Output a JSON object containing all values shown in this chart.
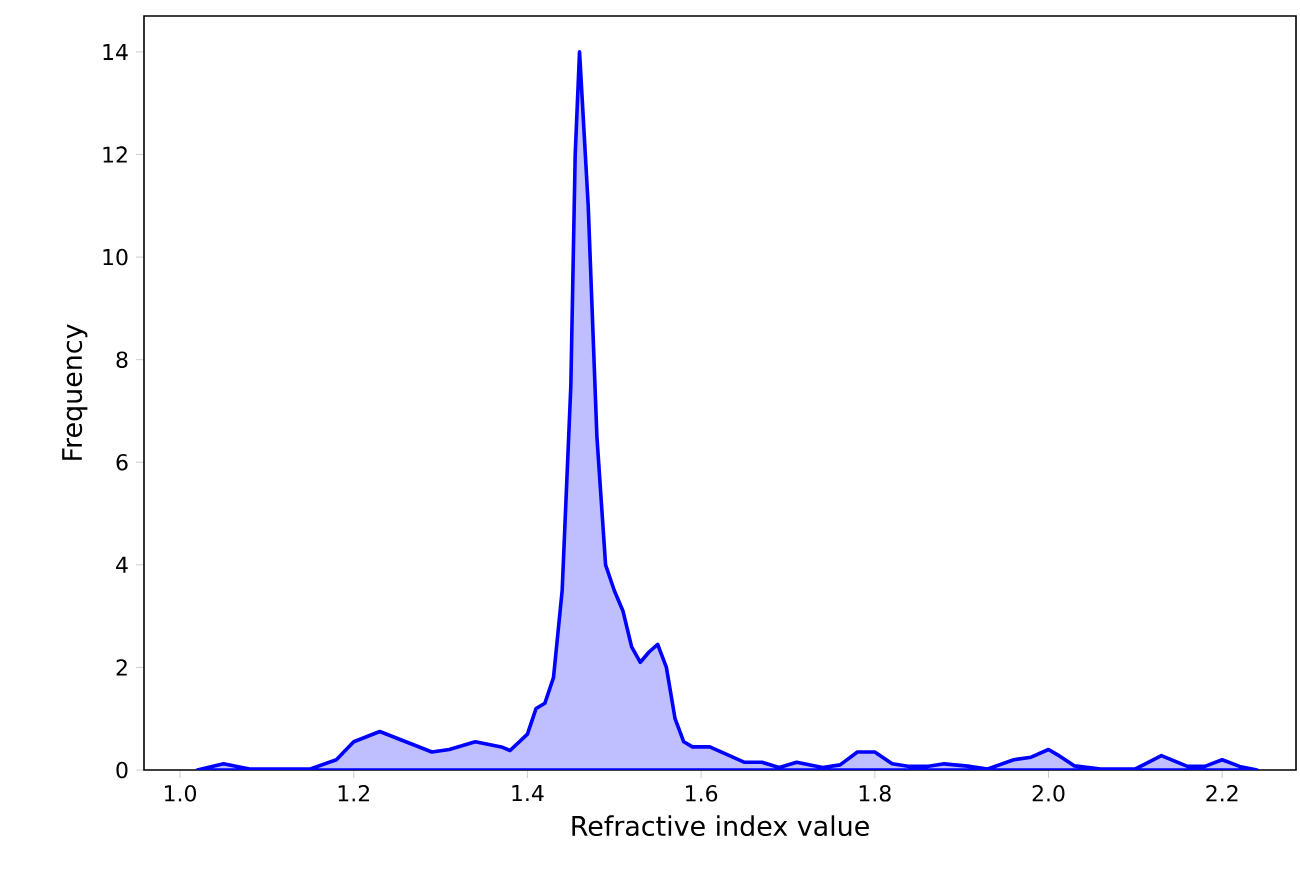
{
  "chart_data": {
    "type": "area",
    "xlabel": "Refractive index value",
    "ylabel": "Frequency",
    "xlim": [
      0.9585,
      2.285
    ],
    "ylim": [
      0,
      14.7
    ],
    "xticks": [
      {
        "value": 1.0,
        "label": "1.0"
      },
      {
        "value": 1.2,
        "label": "1.2"
      },
      {
        "value": 1.4,
        "label": "1.4"
      },
      {
        "value": 1.6,
        "label": "1.6"
      },
      {
        "value": 1.8,
        "label": "1.8"
      },
      {
        "value": 2.0,
        "label": "2.0"
      },
      {
        "value": 2.2,
        "label": "2.2"
      }
    ],
    "yticks": [
      0,
      2,
      4,
      6,
      8,
      10,
      12,
      14
    ],
    "grid": false,
    "line_style": "solid",
    "x": [
      1.02,
      1.05,
      1.08,
      1.15,
      1.18,
      1.2,
      1.23,
      1.26,
      1.29,
      1.31,
      1.34,
      1.37,
      1.38,
      1.4,
      1.41,
      1.42,
      1.43,
      1.44,
      1.45,
      1.455,
      1.46,
      1.47,
      1.48,
      1.49,
      1.5,
      1.51,
      1.52,
      1.53,
      1.54,
      1.55,
      1.56,
      1.57,
      1.58,
      1.59,
      1.61,
      1.63,
      1.65,
      1.67,
      1.69,
      1.71,
      1.74,
      1.76,
      1.78,
      1.8,
      1.82,
      1.84,
      1.86,
      1.88,
      1.91,
      1.93,
      1.96,
      1.98,
      2.0,
      2.01,
      2.03,
      2.06,
      2.1,
      2.13,
      2.16,
      2.18,
      2.2,
      2.22,
      2.24
    ],
    "series": [
      {
        "color": "#0000ff",
        "values": [
          0,
          0.12,
          0.02,
          0.02,
          0.2,
          0.55,
          0.75,
          0.55,
          0.35,
          0.4,
          0.55,
          0.45,
          0.38,
          0.7,
          1.2,
          1.3,
          1.8,
          3.5,
          7.5,
          12,
          14.0,
          11,
          6.5,
          4.0,
          3.5,
          3.1,
          2.4,
          2.1,
          2.3,
          2.45,
          2.0,
          1.0,
          0.55,
          0.45,
          0.45,
          0.3,
          0.15,
          0.15,
          0.05,
          0.15,
          0.05,
          0.1,
          0.35,
          0.35,
          0.12,
          0.07,
          0.07,
          0.12,
          0.07,
          0.02,
          0.2,
          0.25,
          0.4,
          0.3,
          0.08,
          0.02,
          0.02,
          0.28,
          0.07,
          0.07,
          0.2,
          0.07,
          0
        ]
      }
    ]
  }
}
